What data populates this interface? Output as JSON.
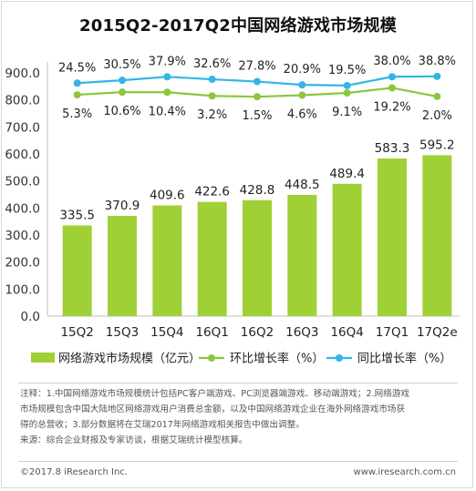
{
  "title": "2015Q2-2017Q2中国网络游戏市场规模",
  "colors": {
    "bar": "#9fd137",
    "qoq_line": "#8cc63f",
    "yoy_line": "#33b5e5"
  },
  "chart_data": {
    "type": "bar",
    "categories": [
      "15Q2",
      "15Q3",
      "15Q4",
      "16Q1",
      "16Q2",
      "16Q3",
      "16Q4",
      "17Q1",
      "17Q2e"
    ],
    "ylim": [
      0,
      900
    ],
    "yticks": [
      "0.0",
      "100.0",
      "200.0",
      "300.0",
      "400.0",
      "500.0",
      "600.0",
      "700.0",
      "800.0",
      "900.0"
    ],
    "series": [
      {
        "name": "网络游戏市场规模（亿元）",
        "type": "bar",
        "values": [
          335.5,
          370.9,
          409.6,
          422.6,
          428.8,
          448.5,
          489.4,
          583.3,
          595.2
        ],
        "labels": [
          "335.5",
          "370.9",
          "409.6",
          "422.6",
          "428.8",
          "448.5",
          "489.4",
          "583.3",
          "595.2"
        ]
      },
      {
        "name": "环比增长率（%）",
        "type": "line",
        "values": [
          5.3,
          10.6,
          10.4,
          3.2,
          1.5,
          4.6,
          9.1,
          19.2,
          2.0
        ],
        "labels": [
          "5.3%",
          "10.6%",
          "10.4%",
          "3.2%",
          "1.5%",
          "4.6%",
          "9.1%",
          "19.2%",
          "2.0%"
        ]
      },
      {
        "name": "同比增长率（%）",
        "type": "line",
        "values": [
          24.5,
          30.5,
          37.9,
          32.6,
          27.8,
          20.9,
          19.5,
          38.0,
          38.8
        ],
        "labels": [
          "24.5%",
          "30.5%",
          "37.9%",
          "32.6%",
          "27.8%",
          "20.9%",
          "19.5%",
          "38.0%",
          "38.8%"
        ]
      }
    ],
    "legend": [
      "网络游戏市场规模（亿元）",
      "环比增长率（%）",
      "同比增长率（%）"
    ],
    "legend_position": "bottom",
    "grid": false
  },
  "notes": {
    "line1": "注释：1.中国网络游戏市场规模统计包括PC客户端游戏、PC浏览器端游戏、移动端游戏；2.网络游戏",
    "line2": "市场规模包含中国大陆地区网络游戏用户消费总金额，以及中国网络游戏企业在海外网络游戏市场获",
    "line3": "得的总营收；3.部分数据将在艾瑞2017年网络游戏相关报告中做出调整。",
    "line4": "来源：综合企业财报及专家访谈，根据艾瑞统计模型核算。"
  },
  "footer": {
    "copyright": "©2017.8 iResearch Inc.",
    "url": "www.iresearch.com.cn"
  }
}
